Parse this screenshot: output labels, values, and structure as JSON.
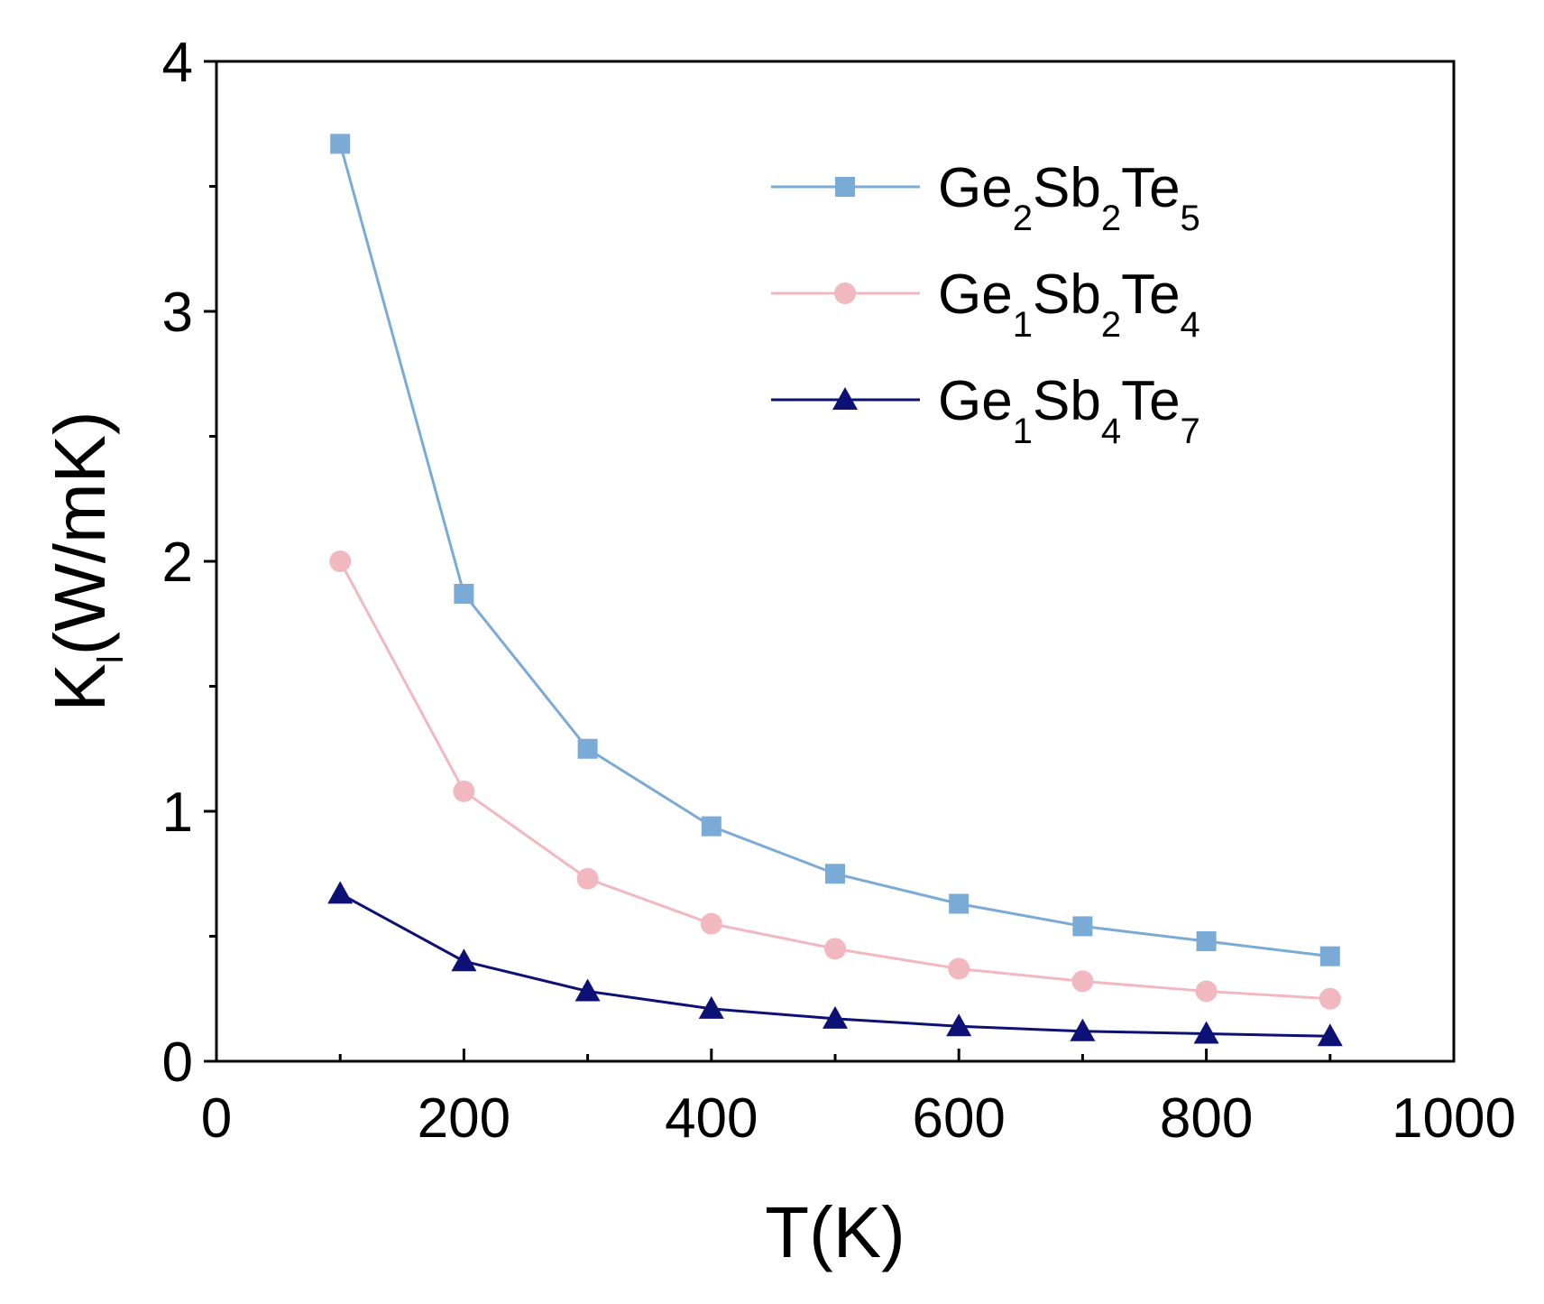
{
  "chart_data": {
    "type": "line",
    "title": "",
    "xlabel": "T(K)",
    "ylabel": {
      "main": "K",
      "subscript": "l",
      "rest": "(W/mK)"
    },
    "xlim": [
      0,
      1000
    ],
    "ylim": [
      0,
      4
    ],
    "x_ticks": [
      "0",
      "200",
      "400",
      "600",
      "800",
      "1000"
    ],
    "y_ticks": [
      "0",
      "1",
      "2",
      "3",
      "4"
    ],
    "legend_position": "top-right",
    "x": [
      100,
      200,
      300,
      400,
      500,
      600,
      700,
      800,
      900
    ],
    "series": [
      {
        "name": "Ge2Sb2Te5",
        "label_parts": [
          [
            "Ge",
            false
          ],
          [
            "2",
            true
          ],
          [
            "Sb",
            false
          ],
          [
            "2",
            true
          ],
          [
            "Te",
            false
          ],
          [
            "5",
            true
          ]
        ],
        "marker": "square",
        "color": "#7aaad6",
        "values": [
          3.67,
          1.87,
          1.25,
          0.94,
          0.75,
          0.63,
          0.54,
          0.48,
          0.42
        ]
      },
      {
        "name": "Ge1Sb2Te4",
        "label_parts": [
          [
            "Ge",
            false
          ],
          [
            "1",
            true
          ],
          [
            "Sb",
            false
          ],
          [
            "2",
            true
          ],
          [
            "Te",
            false
          ],
          [
            "4",
            true
          ]
        ],
        "marker": "circle",
        "color": "#f2b8c0",
        "values": [
          2.0,
          1.08,
          0.73,
          0.55,
          0.45,
          0.37,
          0.32,
          0.28,
          0.25
        ]
      },
      {
        "name": "Ge1Sb4Te7",
        "label_parts": [
          [
            "Ge",
            false
          ],
          [
            "1",
            true
          ],
          [
            "Sb",
            false
          ],
          [
            "4",
            true
          ],
          [
            "Te",
            false
          ],
          [
            "7",
            true
          ]
        ],
        "marker": "triangle",
        "color": "#0d1175",
        "values": [
          0.67,
          0.4,
          0.28,
          0.21,
          0.17,
          0.14,
          0.12,
          0.11,
          0.1
        ]
      }
    ]
  }
}
